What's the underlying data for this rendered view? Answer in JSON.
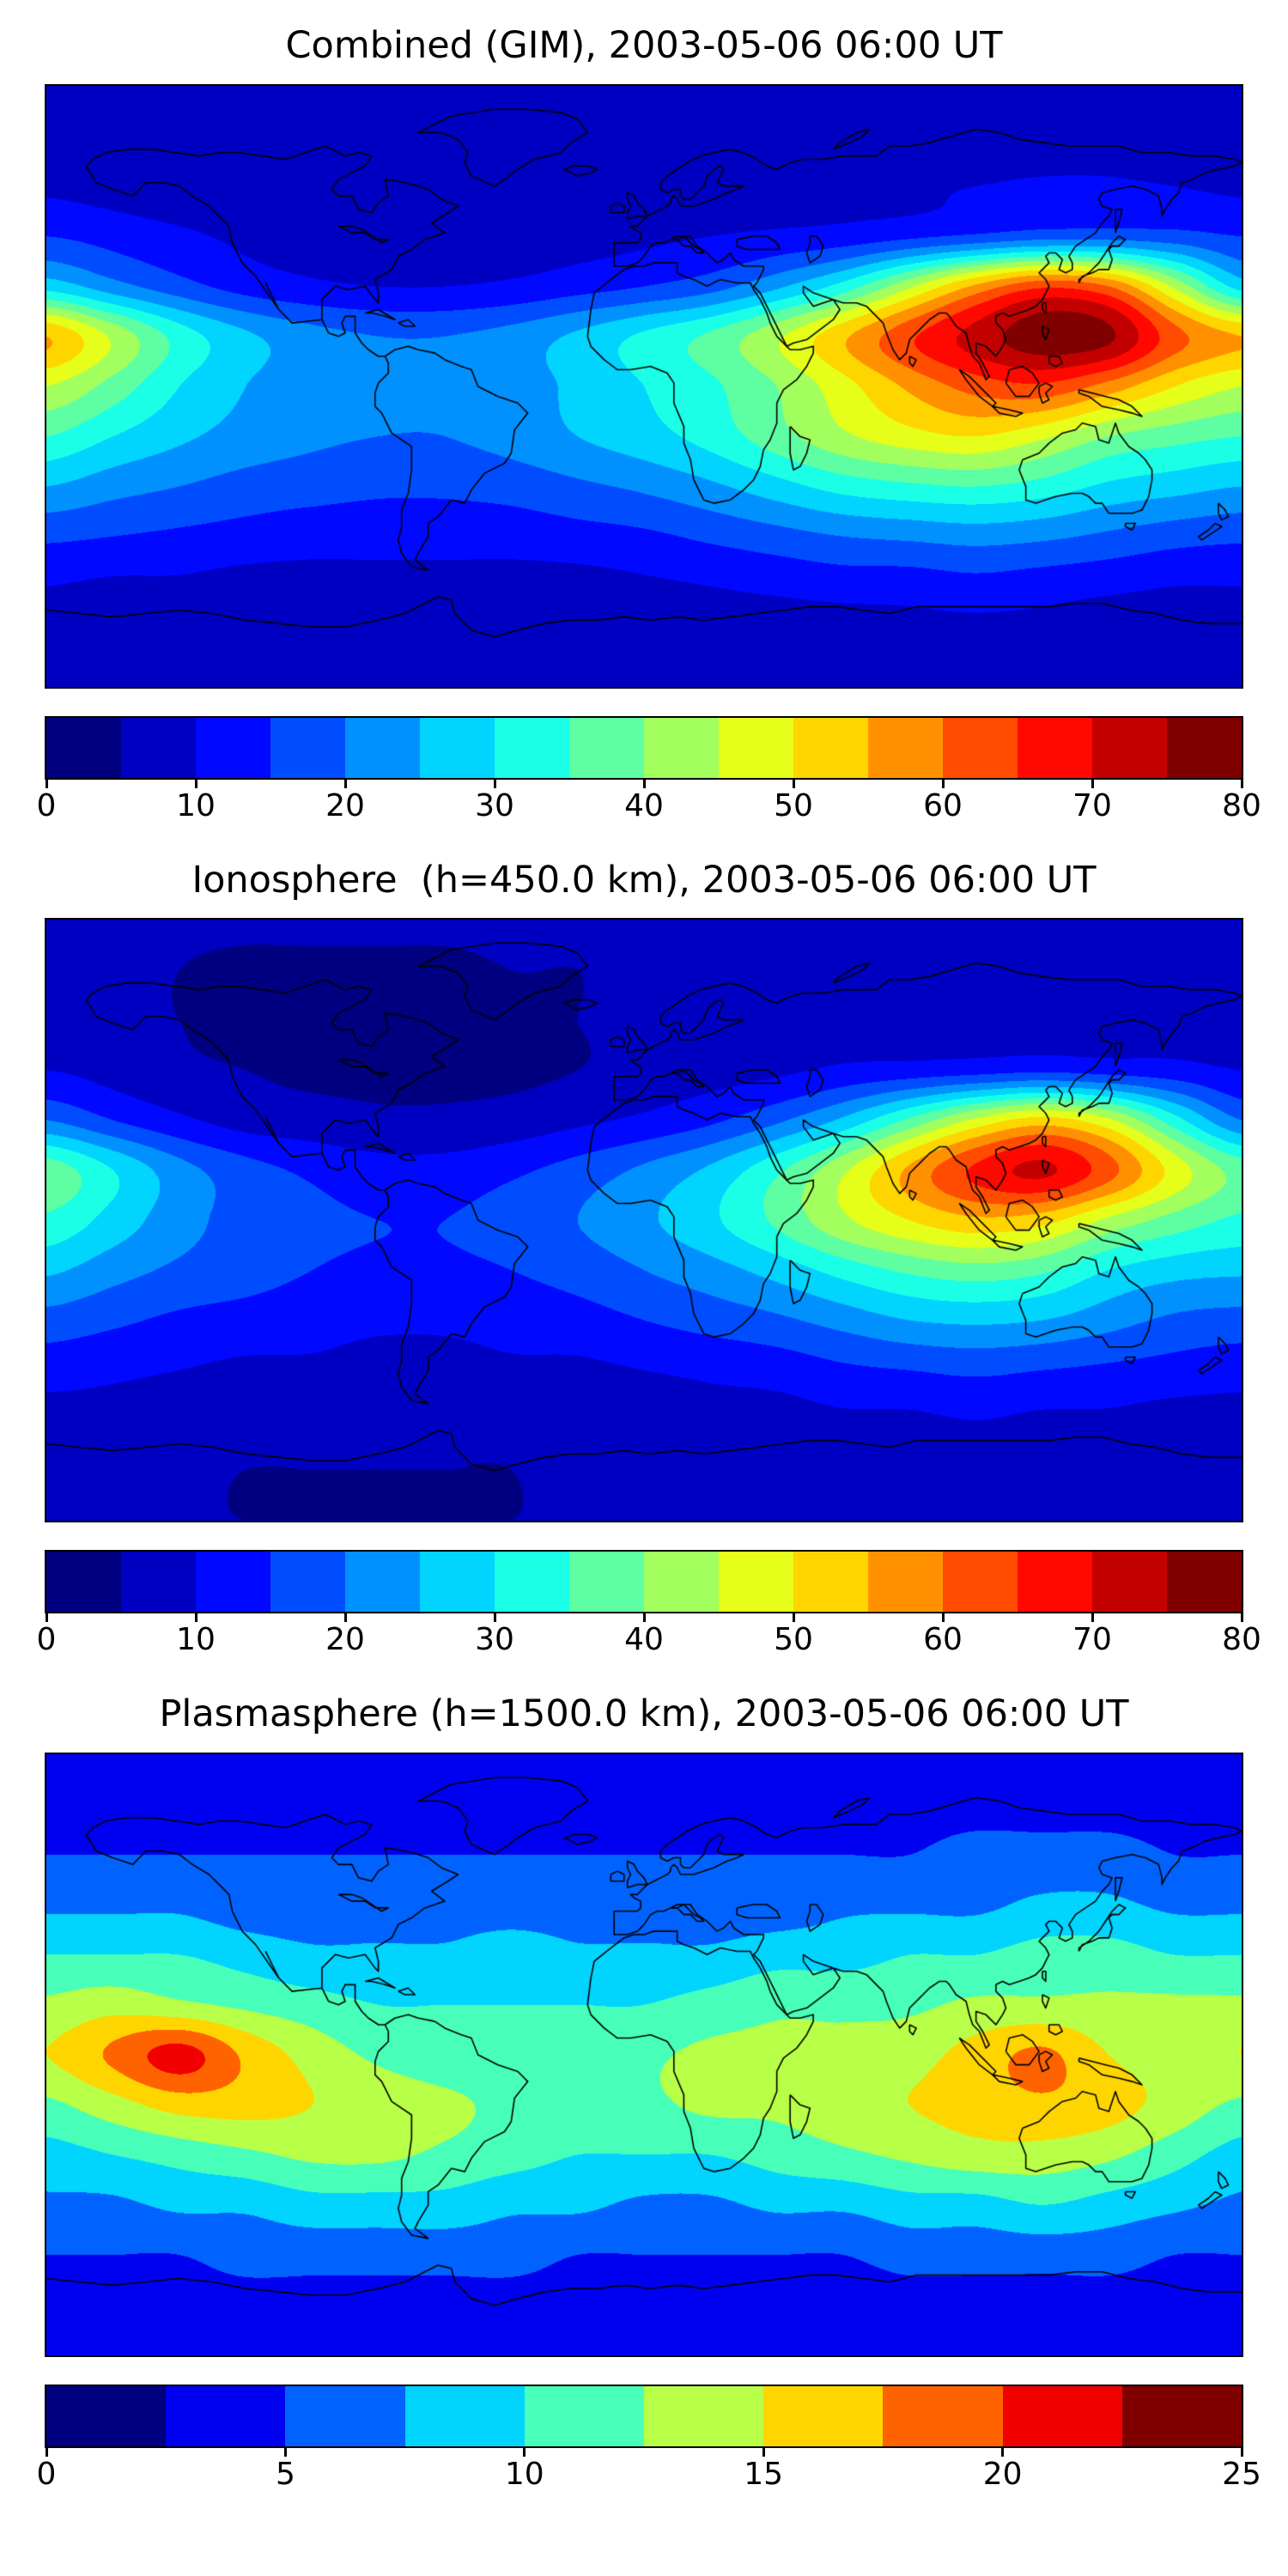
{
  "chart_data": [
    {
      "type": "heatmap",
      "title": "Combined (GIM), 2003-05-06 06:00 UT",
      "projection": "equirectangular",
      "colormap": "jet",
      "levels": {
        "min": 0,
        "max": 80,
        "step": 5
      },
      "colorbar_ticks": [
        0,
        10,
        20,
        30,
        40,
        50,
        60,
        70,
        80
      ],
      "lon": [
        -180,
        -160,
        -140,
        -120,
        -100,
        -80,
        -60,
        -40,
        -20,
        0,
        20,
        40,
        60,
        80,
        100,
        120,
        140,
        160,
        180
      ],
      "lat": [
        90,
        75,
        60,
        45,
        30,
        15,
        0,
        -15,
        -30,
        -45,
        -60,
        -75,
        -90
      ],
      "values": [
        [
          5,
          5,
          5,
          5,
          5,
          5,
          5,
          5,
          5,
          5,
          5,
          5,
          5,
          5,
          5,
          5,
          5,
          5,
          5
        ],
        [
          6,
          6,
          6,
          6,
          6,
          6,
          6,
          6,
          6,
          6,
          6,
          6,
          6,
          7,
          7,
          7,
          7,
          6,
          6
        ],
        [
          9,
          8,
          7,
          7,
          6,
          6,
          6,
          6,
          7,
          7,
          8,
          8,
          9,
          9,
          10,
          11,
          11,
          10,
          9
        ],
        [
          15,
          13,
          11,
          9,
          8,
          7,
          7,
          7,
          8,
          9,
          10,
          11,
          12,
          14,
          16,
          18,
          18,
          17,
          15
        ],
        [
          28,
          22,
          17,
          13,
          11,
          10,
          10,
          11,
          13,
          15,
          18,
          24,
          32,
          44,
          56,
          64,
          60,
          44,
          28
        ],
        [
          55,
          44,
          33,
          26,
          22,
          20,
          20,
          22,
          26,
          31,
          36,
          44,
          54,
          64,
          72,
          78,
          76,
          62,
          55
        ],
        [
          45,
          38,
          30,
          25,
          22,
          21,
          21,
          23,
          26,
          30,
          34,
          40,
          48,
          56,
          62,
          64,
          58,
          50,
          45
        ],
        [
          35,
          30,
          26,
          23,
          21,
          20,
          20,
          22,
          25,
          28,
          32,
          38,
          44,
          48,
          50,
          46,
          40,
          37,
          35
        ],
        [
          25,
          22,
          20,
          18,
          17,
          16,
          16,
          17,
          19,
          21,
          24,
          28,
          32,
          34,
          35,
          33,
          29,
          27,
          25
        ],
        [
          16,
          15,
          14,
          13,
          12,
          12,
          12,
          12,
          13,
          14,
          16,
          18,
          20,
          21,
          22,
          21,
          19,
          17,
          16
        ],
        [
          10,
          9,
          9,
          8,
          8,
          8,
          8,
          8,
          8,
          9,
          10,
          11,
          12,
          12,
          13,
          12,
          11,
          10,
          10
        ],
        [
          7,
          6,
          6,
          6,
          6,
          6,
          6,
          6,
          6,
          6,
          7,
          7,
          7,
          8,
          8,
          8,
          7,
          7,
          7
        ],
        [
          5,
          5,
          5,
          5,
          5,
          5,
          5,
          5,
          5,
          5,
          5,
          5,
          5,
          5,
          5,
          5,
          5,
          5,
          5
        ]
      ]
    },
    {
      "type": "heatmap",
      "title": "Ionosphere  (h=450.0 km), 2003-05-06 06:00 UT",
      "projection": "equirectangular",
      "colormap": "jet",
      "levels": {
        "min": 0,
        "max": 80,
        "step": 5
      },
      "colorbar_ticks": [
        0,
        10,
        20,
        30,
        40,
        50,
        60,
        70,
        80
      ],
      "lon": [
        -180,
        -160,
        -140,
        -120,
        -100,
        -80,
        -60,
        -40,
        -20,
        0,
        20,
        40,
        60,
        80,
        100,
        120,
        140,
        160,
        180
      ],
      "lat": [
        90,
        75,
        60,
        45,
        30,
        15,
        0,
        -15,
        -30,
        -45,
        -60,
        -75,
        -90
      ],
      "values": [
        [
          6,
          6,
          6,
          6,
          6,
          6,
          6,
          6,
          6,
          6,
          6,
          6,
          6,
          6,
          6,
          6,
          6,
          6,
          6
        ],
        [
          6,
          6,
          5,
          4,
          4,
          4,
          4,
          5,
          5,
          6,
          6,
          6,
          6,
          6,
          6,
          7,
          7,
          6,
          6
        ],
        [
          6,
          6,
          5,
          4,
          3,
          3,
          3,
          4,
          5,
          6,
          7,
          7,
          8,
          8,
          9,
          9,
          9,
          8,
          6
        ],
        [
          10,
          8,
          6,
          5,
          4,
          4,
          4,
          4,
          5,
          7,
          8,
          9,
          11,
          12,
          13,
          14,
          13,
          12,
          10
        ],
        [
          20,
          15,
          11,
          8,
          7,
          6,
          6,
          7,
          9,
          11,
          14,
          19,
          26,
          36,
          46,
          52,
          46,
          32,
          20
        ],
        [
          38,
          30,
          22,
          17,
          14,
          12,
          12,
          14,
          17,
          21,
          26,
          34,
          44,
          56,
          66,
          71,
          62,
          48,
          38
        ],
        [
          34,
          28,
          22,
          18,
          16,
          15,
          15,
          17,
          20,
          24,
          29,
          36,
          44,
          50,
          54,
          52,
          44,
          38,
          34
        ],
        [
          26,
          22,
          19,
          17,
          15,
          14,
          14,
          15,
          17,
          20,
          23,
          27,
          32,
          36,
          38,
          36,
          30,
          27,
          26
        ],
        [
          18,
          16,
          14,
          13,
          12,
          11,
          11,
          12,
          13,
          15,
          17,
          19,
          22,
          25,
          26,
          25,
          22,
          19,
          18
        ],
        [
          12,
          11,
          10,
          9,
          9,
          8,
          8,
          9,
          9,
          10,
          11,
          12,
          14,
          15,
          16,
          15,
          14,
          13,
          12
        ],
        [
          8,
          8,
          7,
          7,
          6,
          6,
          6,
          6,
          7,
          7,
          8,
          8,
          9,
          9,
          10,
          9,
          9,
          8,
          8
        ],
        [
          6,
          6,
          6,
          5,
          5,
          5,
          5,
          5,
          6,
          6,
          6,
          6,
          6,
          6,
          6,
          6,
          6,
          6,
          6
        ],
        [
          5,
          5,
          5,
          5,
          5,
          5,
          5,
          5,
          5,
          5,
          5,
          5,
          5,
          5,
          5,
          5,
          5,
          5,
          5
        ]
      ]
    },
    {
      "type": "heatmap",
      "title": "Plasmasphere (h=1500.0 km), 2003-05-06 06:00 UT",
      "projection": "equirectangular",
      "colormap": "jet",
      "levels": {
        "min": 0,
        "max": 25,
        "step": 2.5
      },
      "colorbar_ticks": [
        0,
        5,
        10,
        15,
        20,
        25
      ],
      "lon": [
        -180,
        -160,
        -140,
        -120,
        -100,
        -80,
        -60,
        -40,
        -20,
        0,
        20,
        40,
        60,
        80,
        100,
        120,
        140,
        160,
        180
      ],
      "lat": [
        90,
        75,
        60,
        45,
        30,
        15,
        0,
        -15,
        -30,
        -45,
        -60,
        -75,
        -90
      ],
      "values": [
        [
          4,
          4,
          4,
          4,
          4,
          4,
          4,
          4,
          4,
          4,
          4,
          4,
          4,
          4,
          4,
          4,
          4,
          4,
          4
        ],
        [
          4,
          4,
          4,
          4,
          4,
          4,
          4,
          4,
          4,
          4,
          4,
          4,
          4,
          4,
          4,
          4,
          4,
          4,
          4
        ],
        [
          5,
          5,
          5,
          5,
          5,
          5,
          5,
          5,
          5,
          5,
          5,
          5,
          5,
          5,
          6,
          6,
          6,
          5,
          5
        ],
        [
          7,
          7,
          7,
          6,
          6,
          6,
          6,
          6,
          6,
          6,
          6,
          6,
          7,
          7,
          7,
          8,
          8,
          7,
          7
        ],
        [
          10,
          10,
          10,
          9,
          8,
          8,
          8,
          9,
          8,
          8,
          8,
          9,
          9,
          10,
          10,
          11,
          11,
          10,
          10
        ],
        [
          13,
          14,
          13,
          12,
          11,
          10,
          10,
          10,
          10,
          10,
          11,
          12,
          12,
          12,
          13,
          13,
          13,
          13,
          13
        ],
        [
          15,
          18,
          21,
          17,
          14,
          12,
          11,
          11,
          11,
          12,
          13,
          13,
          13,
          14,
          16,
          18,
          15,
          14,
          15
        ],
        [
          12,
          14,
          16,
          16,
          15,
          14,
          13,
          12,
          12,
          12,
          13,
          13,
          14,
          15,
          16,
          17,
          16,
          14,
          12
        ],
        [
          9,
          10,
          11,
          12,
          13,
          13,
          12,
          11,
          10,
          10,
          10,
          11,
          12,
          13,
          14,
          14,
          13,
          11,
          9
        ],
        [
          7,
          7,
          8,
          8,
          9,
          9,
          9,
          8,
          8,
          7,
          7,
          8,
          8,
          9,
          9,
          10,
          9,
          8,
          7
        ],
        [
          5,
          5,
          5,
          6,
          6,
          6,
          6,
          6,
          5,
          5,
          5,
          5,
          5,
          6,
          6,
          6,
          6,
          5,
          5
        ],
        [
          4,
          4,
          4,
          4,
          4,
          4,
          4,
          4,
          4,
          4,
          4,
          4,
          4,
          4,
          4,
          4,
          4,
          4,
          4
        ],
        [
          4,
          4,
          4,
          4,
          4,
          4,
          4,
          4,
          4,
          4,
          4,
          4,
          4,
          4,
          4,
          4,
          4,
          4,
          4
        ]
      ]
    }
  ]
}
